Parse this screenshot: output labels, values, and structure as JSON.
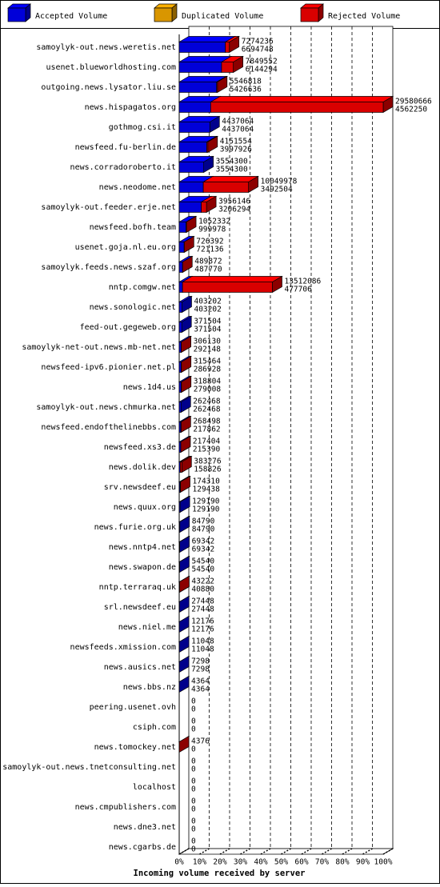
{
  "chart_data": {
    "type": "bar",
    "orientation": "horizontal",
    "x_label": "Incoming volume received by server",
    "legend": [
      {
        "name": "Accepted Volume",
        "color": "#0000ff"
      },
      {
        "name": "Duplicated Volume",
        "color": "#ffb000"
      },
      {
        "name": "Rejected Volume",
        "color": "#ff0000"
      }
    ],
    "categories": [
      "samoylyk-out.news.weretis.net",
      "usenet.blueworldhosting.com",
      "outgoing.news.lysator.liu.se",
      "news.hispagatos.org",
      "gothmog.csi.it",
      "newsfeed.fu-berlin.de",
      "news.corradoroberto.it",
      "news.neodome.net",
      "samoylyk-out.feeder.erje.net",
      "newsfeed.bofh.team",
      "usenet.goja.nl.eu.org",
      "samoylyk.feeds.news.szaf.org",
      "nntp.comgw.net",
      "news.sonologic.net",
      "feed-out.gegeweb.org",
      "samoylyk-net-out.news.mb-net.net",
      "newsfeed-ipv6.pionier.net.pl",
      "news.1d4.us",
      "samoylyk-out.news.chmurka.net",
      "newsfeed.endofthelinebbs.com",
      "newsfeed.xs3.de",
      "news.dolik.dev",
      "srv.newsdeef.eu",
      "news.quux.org",
      "news.furie.org.uk",
      "news.nntp4.net",
      "news.swapon.de",
      "nntp.terraraq.uk",
      "srl.newsdeef.eu",
      "news.niel.me",
      "newsfeeds.xmission.com",
      "news.ausics.net",
      "news.bbs.nz",
      "peering.usenet.ovh",
      "csiph.com",
      "news.tomockey.net",
      "samoylyk-out.news.tnetconsulting.net",
      "localhost",
      "news.cmpublishers.com",
      "news.dne3.net",
      "news.cgarbs.de"
    ],
    "total": [
      7274236,
      7849552,
      5546818,
      29580666,
      4437064,
      4151554,
      3554300,
      10049978,
      3956146,
      1052332,
      726392,
      489872,
      13512086,
      403202,
      371504,
      306130,
      315464,
      318804,
      262468,
      268498,
      217404,
      383276,
      174310,
      129190,
      84790,
      69342,
      54540,
      43222,
      27448,
      12176,
      11048,
      7298,
      4364,
      0,
      0,
      4376,
      0,
      0,
      0,
      0,
      0
    ],
    "accepted": [
      6694748,
      6144294,
      5426636,
      4562250,
      4437064,
      3997926,
      3554300,
      3492504,
      3206294,
      999978,
      721136,
      487770,
      477706,
      403202,
      371504,
      292148,
      286928,
      279008,
      262468,
      217862,
      215390,
      158826,
      129438,
      129190,
      84790,
      69342,
      54540,
      40880,
      27448,
      12176,
      11048,
      7298,
      4364,
      0,
      0,
      0,
      0,
      0,
      0,
      0,
      0
    ],
    "xlim": [
      0,
      29580666
    ],
    "xticks": [
      {
        "value": 0,
        "label": "0%"
      },
      {
        "value": 2958066.6,
        "label": "10%"
      },
      {
        "value": 5916133.2,
        "label": "20%"
      },
      {
        "value": 8874199.8,
        "label": "30%"
      },
      {
        "value": 11832266.4,
        "label": "40%"
      },
      {
        "value": 14790333,
        "label": "50%"
      },
      {
        "value": 17748399.6,
        "label": "60%"
      },
      {
        "value": 20706466.2,
        "label": "70%"
      },
      {
        "value": 23664532.8,
        "label": "80%"
      },
      {
        "value": 26622599.4,
        "label": "90%"
      },
      {
        "value": 29580666,
        "label": "100%"
      }
    ],
    "grid": true
  }
}
